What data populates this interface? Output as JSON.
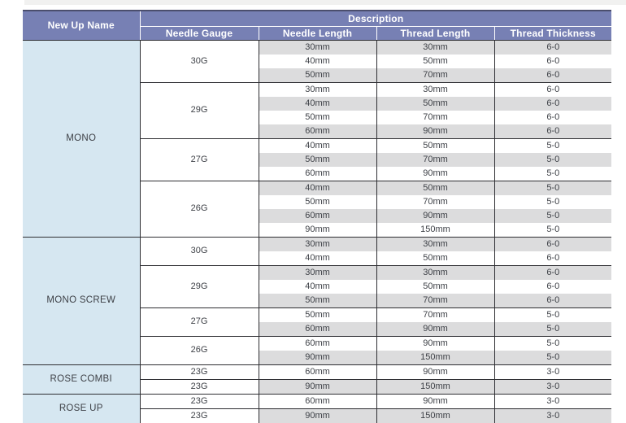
{
  "table": {
    "header": {
      "name_column": "New Up Name",
      "description": "Description",
      "sub_columns": [
        "Needle Gauge",
        "Needle Length",
        "Thread Length",
        "Thread Thickness"
      ]
    },
    "sections": [
      {
        "name": "MONO",
        "groups": [
          {
            "gauge": "30G",
            "rows": [
              [
                "30mm",
                "30mm",
                "6-0"
              ],
              [
                "40mm",
                "50mm",
                "6-0"
              ],
              [
                "50mm",
                "70mm",
                "6-0"
              ]
            ]
          },
          {
            "gauge": "29G",
            "rows": [
              [
                "30mm",
                "30mm",
                "6-0"
              ],
              [
                "40mm",
                "50mm",
                "6-0"
              ],
              [
                "50mm",
                "70mm",
                "6-0"
              ],
              [
                "60mm",
                "90mm",
                "6-0"
              ]
            ]
          },
          {
            "gauge": "27G",
            "rows": [
              [
                "40mm",
                "50mm",
                "5-0"
              ],
              [
                "50mm",
                "70mm",
                "5-0"
              ],
              [
                "60mm",
                "90mm",
                "5-0"
              ]
            ]
          },
          {
            "gauge": "26G",
            "rows": [
              [
                "40mm",
                "50mm",
                "5-0"
              ],
              [
                "50mm",
                "70mm",
                "5-0"
              ],
              [
                "60mm",
                "90mm",
                "5-0"
              ],
              [
                "90mm",
                "150mm",
                "5-0"
              ]
            ]
          }
        ]
      },
      {
        "name": "MONO SCREW",
        "groups": [
          {
            "gauge": "30G",
            "rows": [
              [
                "30mm",
                "30mm",
                "6-0"
              ],
              [
                "40mm",
                "50mm",
                "6-0"
              ]
            ]
          },
          {
            "gauge": "29G",
            "rows": [
              [
                "30mm",
                "30mm",
                "6-0"
              ],
              [
                "40mm",
                "50mm",
                "6-0"
              ],
              [
                "50mm",
                "70mm",
                "6-0"
              ]
            ]
          },
          {
            "gauge": "27G",
            "rows": [
              [
                "50mm",
                "70mm",
                "5-0"
              ],
              [
                "60mm",
                "90mm",
                "5-0"
              ]
            ]
          },
          {
            "gauge": "26G",
            "rows": [
              [
                "60mm",
                "90mm",
                "5-0"
              ],
              [
                "90mm",
                "150mm",
                "5-0"
              ]
            ]
          }
        ]
      },
      {
        "name": "ROSE COMBI",
        "groups": [
          {
            "gauge": "23G",
            "rows": [
              [
                "60mm",
                "90mm",
                "3-0"
              ]
            ]
          },
          {
            "gauge": "23G",
            "rows": [
              [
                "90mm",
                "150mm",
                "3-0"
              ]
            ]
          }
        ]
      },
      {
        "name": "ROSE UP",
        "groups": [
          {
            "gauge": "23G",
            "rows": [
              [
                "60mm",
                "90mm",
                "3-0"
              ]
            ]
          },
          {
            "gauge": "23G",
            "rows": [
              [
                "90mm",
                "150mm",
                "3-0"
              ]
            ]
          }
        ]
      }
    ]
  },
  "colors": {
    "header_bg": "#7780b4",
    "header_text": "#ffffff",
    "header_top_border": "#4b4e6d",
    "row_stripe": "#dcdcdd",
    "name_column_bg": "#d6e7f1",
    "border_dark": "#2e2e32",
    "cell_text": "#3e4147"
  }
}
